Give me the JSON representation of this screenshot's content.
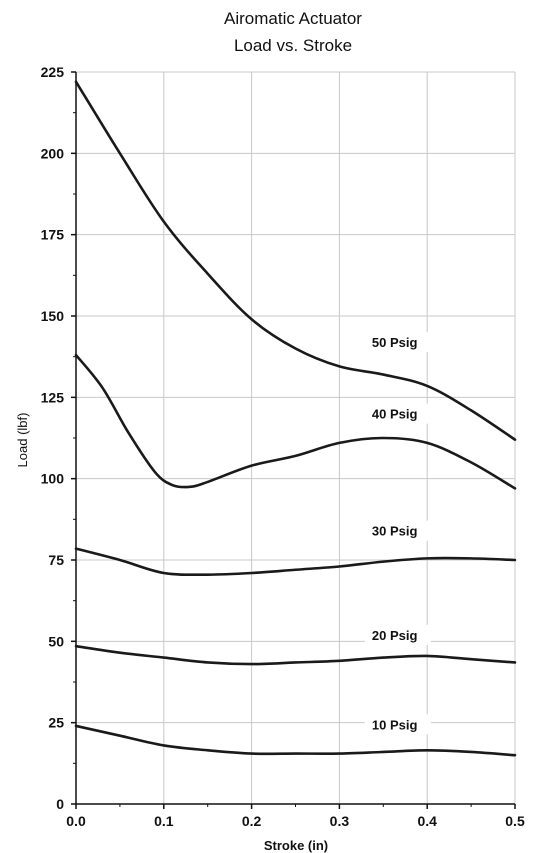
{
  "chart_data": {
    "type": "line",
    "title": "Airomatic Actuator",
    "subtitle": "Load vs. Stroke",
    "xlabel": "Stroke (in)",
    "ylabel": "Load (lbf)",
    "xlim": [
      0,
      0.5
    ],
    "ylim": [
      0,
      225
    ],
    "x_ticks": [
      "0.0",
      "0.1",
      "0.2",
      "0.3",
      "0.4",
      "0.5"
    ],
    "y_ticks": [
      "0",
      "25",
      "50",
      "75",
      "100",
      "125",
      "150",
      "175",
      "200",
      "225"
    ],
    "grid": true,
    "legend": "inline labels",
    "series": [
      {
        "name": "50 Psig",
        "x": [
          0,
          0.05,
          0.1,
          0.15,
          0.2,
          0.25,
          0.3,
          0.35,
          0.4,
          0.45,
          0.5
        ],
        "y": [
          222,
          200,
          179,
          163,
          149,
          140,
          134.5,
          132,
          128.5,
          121,
          112
        ]
      },
      {
        "name": "40 Psig",
        "x": [
          0,
          0.03,
          0.06,
          0.09,
          0.11,
          0.13,
          0.15,
          0.2,
          0.25,
          0.3,
          0.35,
          0.4,
          0.45,
          0.5
        ],
        "y": [
          138,
          128,
          114,
          102,
          98,
          97.5,
          99,
          104,
          107,
          111,
          112.5,
          111,
          105,
          97
        ]
      },
      {
        "name": "30 Psig",
        "x": [
          0,
          0.05,
          0.1,
          0.15,
          0.2,
          0.25,
          0.3,
          0.35,
          0.4,
          0.45,
          0.5
        ],
        "y": [
          78.5,
          75,
          71,
          70.5,
          71,
          72,
          73,
          74.5,
          75.5,
          75.5,
          75
        ]
      },
      {
        "name": "20 Psig",
        "x": [
          0,
          0.05,
          0.1,
          0.15,
          0.2,
          0.25,
          0.3,
          0.35,
          0.4,
          0.45,
          0.5
        ],
        "y": [
          48.5,
          46.5,
          45,
          43.5,
          43,
          43.5,
          44,
          45,
          45.5,
          44.5,
          43.5
        ]
      },
      {
        "name": "10 Psig",
        "x": [
          0,
          0.05,
          0.1,
          0.15,
          0.2,
          0.25,
          0.3,
          0.35,
          0.4,
          0.45,
          0.5
        ],
        "y": [
          24,
          21,
          18,
          16.5,
          15.5,
          15.5,
          15.5,
          16,
          16.5,
          16,
          15
        ]
      }
    ]
  },
  "colors": {
    "line": "#1a1a1a",
    "grid": "#c8c8c8",
    "axis": "#111111",
    "background": "#ffffff"
  }
}
